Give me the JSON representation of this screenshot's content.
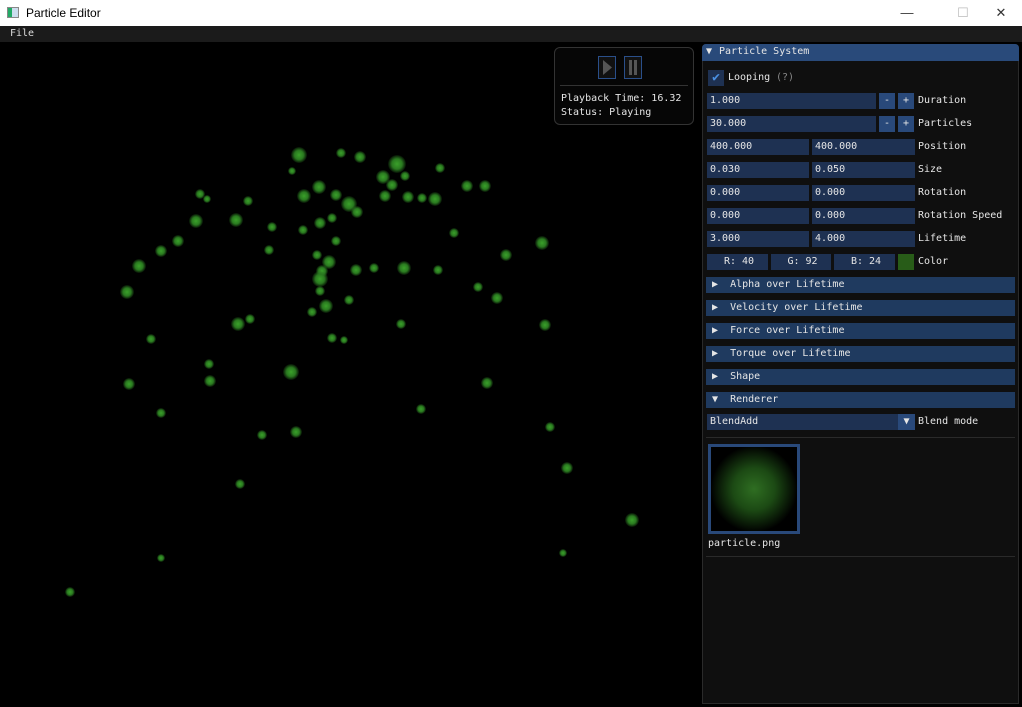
{
  "window": {
    "title": "Particle Editor",
    "minimize": "—",
    "maximize": "☐",
    "close": "✕"
  },
  "menu": {
    "file": "File"
  },
  "playback": {
    "time_label": "Playback Time: 16.32",
    "status_label": "Status: Playing"
  },
  "panel": {
    "title": "Particle System",
    "looping": {
      "label": "Looping",
      "help": "(?)",
      "checked": true
    },
    "duration": {
      "value": "1.000",
      "label": "Duration",
      "minus": "-",
      "plus": "+"
    },
    "particles": {
      "value": "30.000",
      "label": "Particles",
      "minus": "-",
      "plus": "+"
    },
    "position": {
      "x": "400.000",
      "y": "400.000",
      "label": "Position"
    },
    "size": {
      "min": "0.030",
      "max": "0.050",
      "label": "Size"
    },
    "rotation": {
      "min": "0.000",
      "max": "0.000",
      "label": "Rotation"
    },
    "rotation_speed": {
      "min": "0.000",
      "max": "0.000",
      "label": "Rotation Speed"
    },
    "lifetime": {
      "min": "3.000",
      "max": "4.000",
      "label": "Lifetime"
    },
    "color": {
      "r": "R: 40",
      "g": "G: 92",
      "b": "B: 24",
      "label": "Color",
      "swatch": "#285c18"
    },
    "sections": [
      "Alpha over Lifetime",
      "Velocity over Lifetime",
      "Force over Lifetime",
      "Torque over Lifetime",
      "Shape"
    ],
    "renderer": {
      "title": "Renderer",
      "blend_value": "BlendAdd",
      "blend_label": "Blend mode",
      "texture_name": "particle.png"
    }
  },
  "colors": {
    "accent": "#294a7a",
    "field": "#1e3152",
    "particle": "#3aa02a"
  }
}
